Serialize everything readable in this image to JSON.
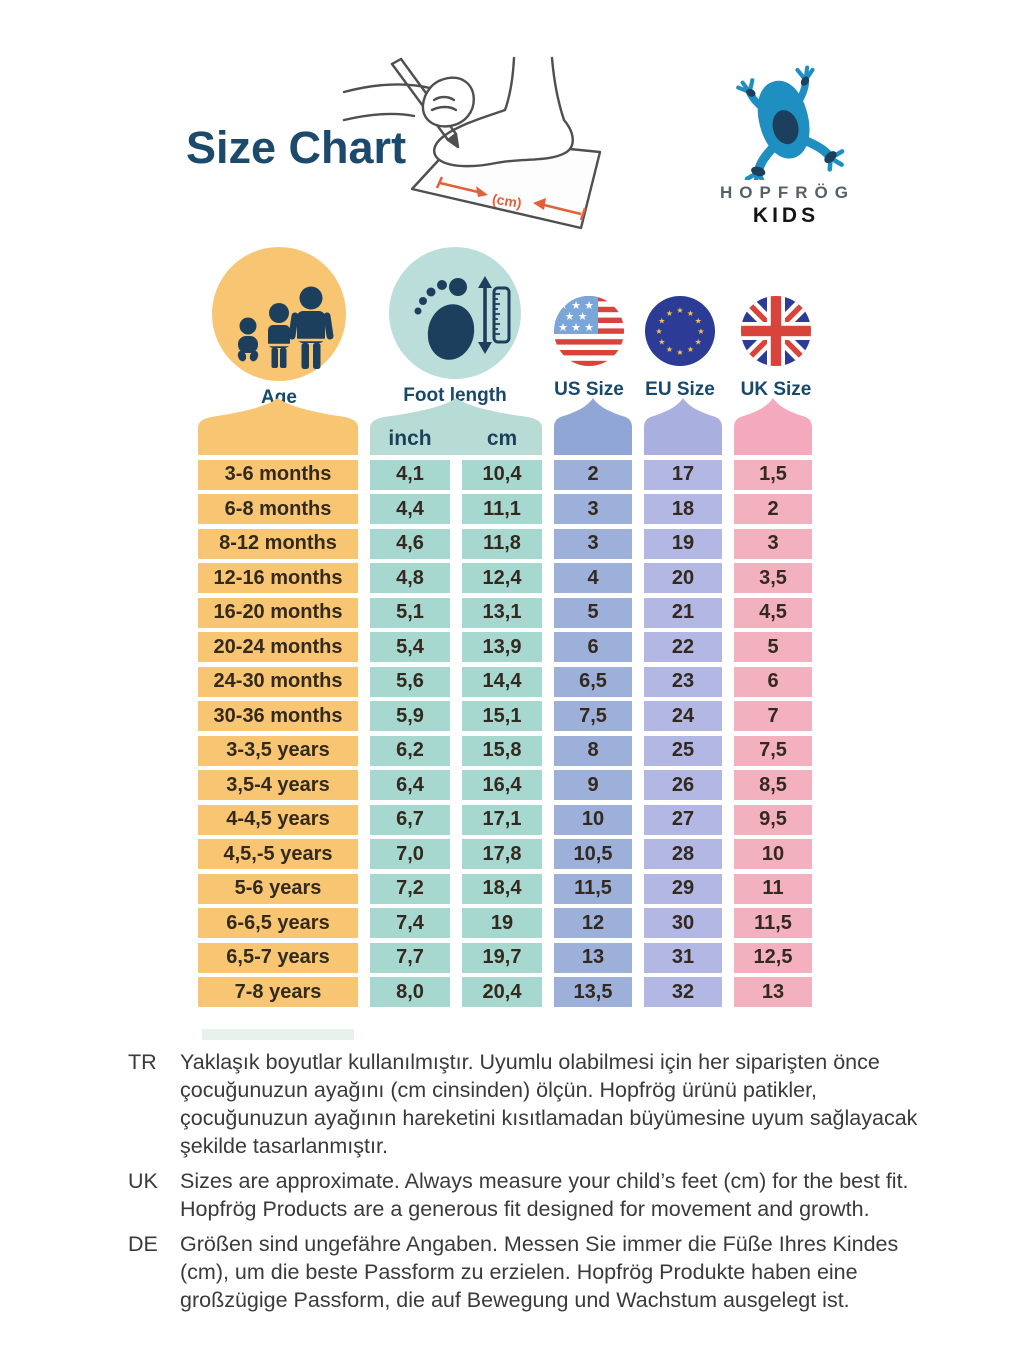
{
  "page": {
    "title": "Size Chart",
    "cm_label": "(cm)"
  },
  "brand": {
    "name": "HOPFRÖG",
    "sub": "KIDS"
  },
  "columns": {
    "age": {
      "label": "Age"
    },
    "foot": {
      "label": "Foot length",
      "sub_inch": "inch",
      "sub_cm": "cm"
    },
    "us": {
      "label": "US Size"
    },
    "eu": {
      "label": "EU Size"
    },
    "uk": {
      "label": "UK Size"
    }
  },
  "chart_data": {
    "type": "table",
    "title": "Size Chart",
    "columns": [
      "Age",
      "Foot length (inch)",
      "Foot length (cm)",
      "US Size",
      "EU Size",
      "UK Size"
    ],
    "rows": [
      [
        "3-6 months",
        "4,1",
        "10,4",
        "2",
        "17",
        "1,5"
      ],
      [
        "6-8 months",
        "4,4",
        "11,1",
        "3",
        "18",
        "2"
      ],
      [
        "8-12 months",
        "4,6",
        "11,8",
        "3",
        "19",
        "3"
      ],
      [
        "12-16 months",
        "4,8",
        "12,4",
        "4",
        "20",
        "3,5"
      ],
      [
        "16-20 months",
        "5,1",
        "13,1",
        "5",
        "21",
        "4,5"
      ],
      [
        "20-24 months",
        "5,4",
        "13,9",
        "6",
        "22",
        "5"
      ],
      [
        "24-30 months",
        "5,6",
        "14,4",
        "6,5",
        "23",
        "6"
      ],
      [
        "30-36 months",
        "5,9",
        "15,1",
        "7,5",
        "24",
        "7"
      ],
      [
        "3-3,5 years",
        "6,2",
        "15,8",
        "8",
        "25",
        "7,5"
      ],
      [
        "3,5-4 years",
        "6,4",
        "16,4",
        "9",
        "26",
        "8,5"
      ],
      [
        "4-4,5 years",
        "6,7",
        "17,1",
        "10",
        "27",
        "9,5"
      ],
      [
        "4,5,-5 years",
        "7,0",
        "17,8",
        "10,5",
        "28",
        "10"
      ],
      [
        "5-6 years",
        "7,2",
        "18,4",
        "11,5",
        "29",
        "11"
      ],
      [
        "6-6,5 years",
        "7,4",
        "19",
        "12",
        "30",
        "11,5"
      ],
      [
        "6,5-7 years",
        "7,7",
        "19,7",
        "13",
        "31",
        "12,5"
      ],
      [
        "7-8 years",
        "8,0",
        "20,4",
        "13,5",
        "32",
        "13"
      ]
    ]
  },
  "notes": [
    {
      "label": "TR",
      "text": "Yaklaşık boyutlar kullanılmıştır. Uyumlu olabilmesi için her siparişten önce çocuğunuzun ayağını (cm cinsinden) ölçün. Hopfrög ürünü patikler, çocuğunuzun ayağının hareketini kısıtlamadan büyümesine uyum sağlayacak şekilde tasarlanmıştır."
    },
    {
      "label": "UK",
      "text": "Sizes are approximate. Always measure your child’s feet (cm) for the best fit. Hopfrög Products are a generous fit designed for movement and growth."
    },
    {
      "label": "DE",
      "text": "Größen sind ungefähre Angaben. Messen Sie immer die Füße Ihres Kindes (cm), um die beste Passform zu erzielen. Hopfrög Produkte haben eine großzügige Passform, die auf Bewegung und Wachstum ausgelegt ist."
    }
  ],
  "colors": {
    "age": "#f8c672",
    "foot_cell": "#a7d8d0",
    "foot_header": "#b7dcd6",
    "foot_icon_bg": "#bcdeda",
    "us": "#9cb0da",
    "us_header": "#90a7d6",
    "eu": "#b2b8e3",
    "eu_header": "#a9afdf",
    "uk": "#f3b1c0",
    "uk_header": "#f5a9bd",
    "icon_navy": "#1d3f5e",
    "label_navy": "#17496b",
    "title_navy": "#1c4a6c",
    "arrow_orange": "#e2603a",
    "frog_blue": "#1e8fc0",
    "flag_blue": "#2c3c96",
    "flag_red": "#d8433c",
    "note_text": "#3a3a3a",
    "cell_text": "#33291e"
  }
}
